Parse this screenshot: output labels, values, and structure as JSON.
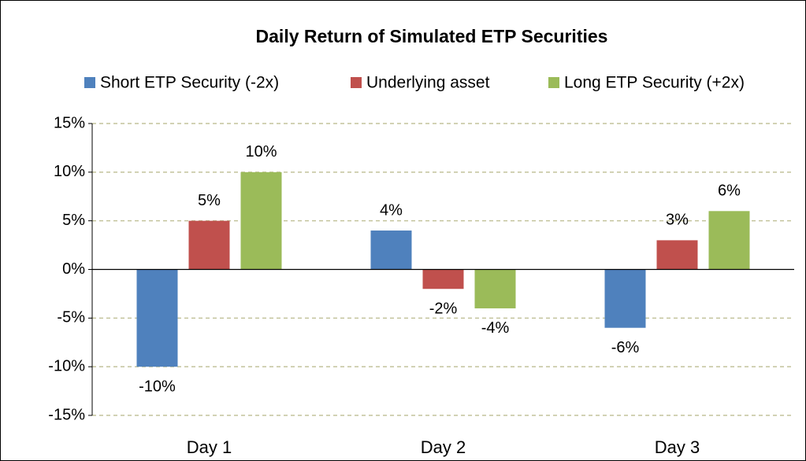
{
  "chart_data": {
    "type": "bar",
    "title": "Daily Return of Simulated ETP Securities",
    "categories": [
      "Day 1",
      "Day 2",
      "Day 3"
    ],
    "series": [
      {
        "name": "Short ETP Security (-2x)",
        "color": "#4f81bd",
        "values": [
          -10,
          4,
          -6
        ],
        "value_labels": [
          "-10%",
          "4%",
          "-6%"
        ]
      },
      {
        "name": "Underlying asset",
        "color": "#c0504d",
        "values": [
          5,
          -2,
          3
        ],
        "value_labels": [
          "5%",
          "-2%",
          "3%"
        ]
      },
      {
        "name": "Long ETP Security (+2x)",
        "color": "#9bbb59",
        "values": [
          10,
          -4,
          6
        ],
        "value_labels": [
          "10%",
          "-4%",
          "6%"
        ]
      }
    ],
    "ylim": [
      -15,
      15
    ],
    "yticks": [
      {
        "value": -15,
        "label": "-15%"
      },
      {
        "value": -10,
        "label": "-10%"
      },
      {
        "value": -5,
        "label": "-5%"
      },
      {
        "value": 0,
        "label": "0%"
      },
      {
        "value": 5,
        "label": "5%"
      },
      {
        "value": 10,
        "label": "10%"
      },
      {
        "value": 15,
        "label": "15%"
      }
    ],
    "grid": true,
    "legend": "top"
  }
}
